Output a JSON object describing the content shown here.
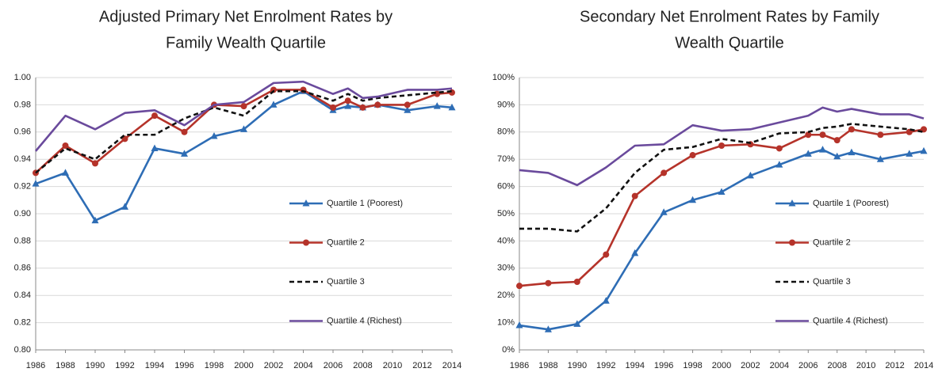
{
  "chart_data": [
    {
      "type": "line",
      "title": [
        "Adjusted Primary Net Enrolment Rates by",
        "Family Wealth Quartile"
      ],
      "x": [
        1986,
        1988,
        1990,
        1992,
        1994,
        1996,
        1998,
        2000,
        2002,
        2004,
        2006,
        2007,
        2008,
        2009,
        2011,
        2013,
        2014
      ],
      "xlim": [
        1986,
        2014
      ],
      "xticks": [
        1986,
        1988,
        1990,
        1992,
        1994,
        1996,
        1998,
        2000,
        2002,
        2004,
        2006,
        2008,
        2010,
        2012,
        2014
      ],
      "ylim": [
        0.8,
        1.0
      ],
      "yticks": [
        {
          "value": 0.8,
          "label": "0.80"
        },
        0.82,
        0.84,
        0.86,
        0.88,
        {
          "value": 0.9,
          "label": "0.90"
        },
        0.92,
        0.94,
        0.96,
        0.98,
        {
          "value": 1.0,
          "label": "1.00"
        }
      ],
      "grid": true,
      "legend": "lower right",
      "series": [
        {
          "name": "Quartile 1 (Poorest)",
          "color": "#2e6db5",
          "marker": "triangle",
          "values": [
            0.922,
            0.93,
            0.895,
            0.905,
            0.948,
            0.944,
            0.957,
            0.962,
            0.98,
            0.99,
            0.976,
            0.979,
            0.978,
            0.98,
            0.976,
            0.979,
            0.978
          ]
        },
        {
          "name": "Quartile 2",
          "color": "#b5332a",
          "marker": "circle",
          "values": [
            0.93,
            0.95,
            0.937,
            0.955,
            0.972,
            0.96,
            0.98,
            0.979,
            0.991,
            0.991,
            0.978,
            0.983,
            0.978,
            0.98,
            0.98,
            0.988,
            0.989
          ]
        },
        {
          "name": "Quartile 3",
          "color": "#111111",
          "dash": true,
          "values": [
            0.93,
            0.948,
            0.94,
            0.958,
            0.958,
            0.97,
            0.978,
            0.972,
            0.99,
            0.99,
            0.983,
            0.988,
            0.983,
            0.985,
            0.987,
            0.989,
            0.99
          ]
        },
        {
          "name": "Quartile 4 (Richest)",
          "color": "#6a4a9c",
          "values": [
            0.946,
            0.972,
            0.962,
            0.974,
            0.976,
            0.965,
            0.98,
            0.982,
            0.996,
            0.997,
            0.988,
            0.992,
            0.985,
            0.986,
            0.991,
            0.991,
            0.992
          ]
        }
      ]
    },
    {
      "type": "line",
      "title": [
        "Secondary Net Enrolment Rates by Family",
        "Wealth Quartile"
      ],
      "x": [
        1986,
        1988,
        1990,
        1992,
        1994,
        1996,
        1998,
        2000,
        2002,
        2004,
        2006,
        2007,
        2008,
        2009,
        2011,
        2013,
        2014
      ],
      "xlim": [
        1986,
        2014
      ],
      "xticks": [
        1986,
        1988,
        1990,
        1992,
        1994,
        1996,
        1998,
        2000,
        2002,
        2004,
        2006,
        2008,
        2010,
        2012,
        2014
      ],
      "ylim": [
        0,
        100
      ],
      "yticks": [
        {
          "value": 0,
          "label": "0%"
        },
        {
          "value": 10,
          "label": "10%"
        },
        {
          "value": 20,
          "label": "20%"
        },
        {
          "value": 30,
          "label": "30%"
        },
        {
          "value": 40,
          "label": "40%"
        },
        {
          "value": 50,
          "label": "50%"
        },
        {
          "value": 60,
          "label": "60%"
        },
        {
          "value": 70,
          "label": "70%"
        },
        {
          "value": 80,
          "label": "80%"
        },
        {
          "value": 90,
          "label": "90%"
        },
        {
          "value": 100,
          "label": "100%"
        }
      ],
      "grid": true,
      "legend": "lower right",
      "series": [
        {
          "name": "Quartile 1 (Poorest)",
          "color": "#2e6db5",
          "marker": "triangle",
          "values": [
            9,
            7.5,
            9.5,
            18,
            35.5,
            50.5,
            55,
            58,
            64,
            68,
            72,
            73.5,
            71,
            72.5,
            70,
            72,
            73
          ]
        },
        {
          "name": "Quartile 2",
          "color": "#b5332a",
          "marker": "circle",
          "values": [
            23.5,
            24.5,
            25,
            35,
            56.5,
            65,
            71.5,
            75,
            75.5,
            74,
            79,
            79,
            77,
            81,
            79,
            80,
            81
          ]
        },
        {
          "name": "Quartile 3",
          "color": "#111111",
          "dash": true,
          "values": [
            44.5,
            44.5,
            43.5,
            52,
            65,
            73.5,
            74.5,
            77.5,
            76,
            79.5,
            80,
            81.5,
            82,
            83,
            82,
            81,
            80
          ]
        },
        {
          "name": "Quartile 4 (Richest)",
          "color": "#6a4a9c",
          "values": [
            66,
            65,
            60.5,
            67,
            75,
            75.5,
            82.5,
            80.5,
            81,
            83.5,
            86,
            89,
            87.5,
            88.5,
            86.5,
            86.5,
            85
          ]
        }
      ]
    }
  ]
}
